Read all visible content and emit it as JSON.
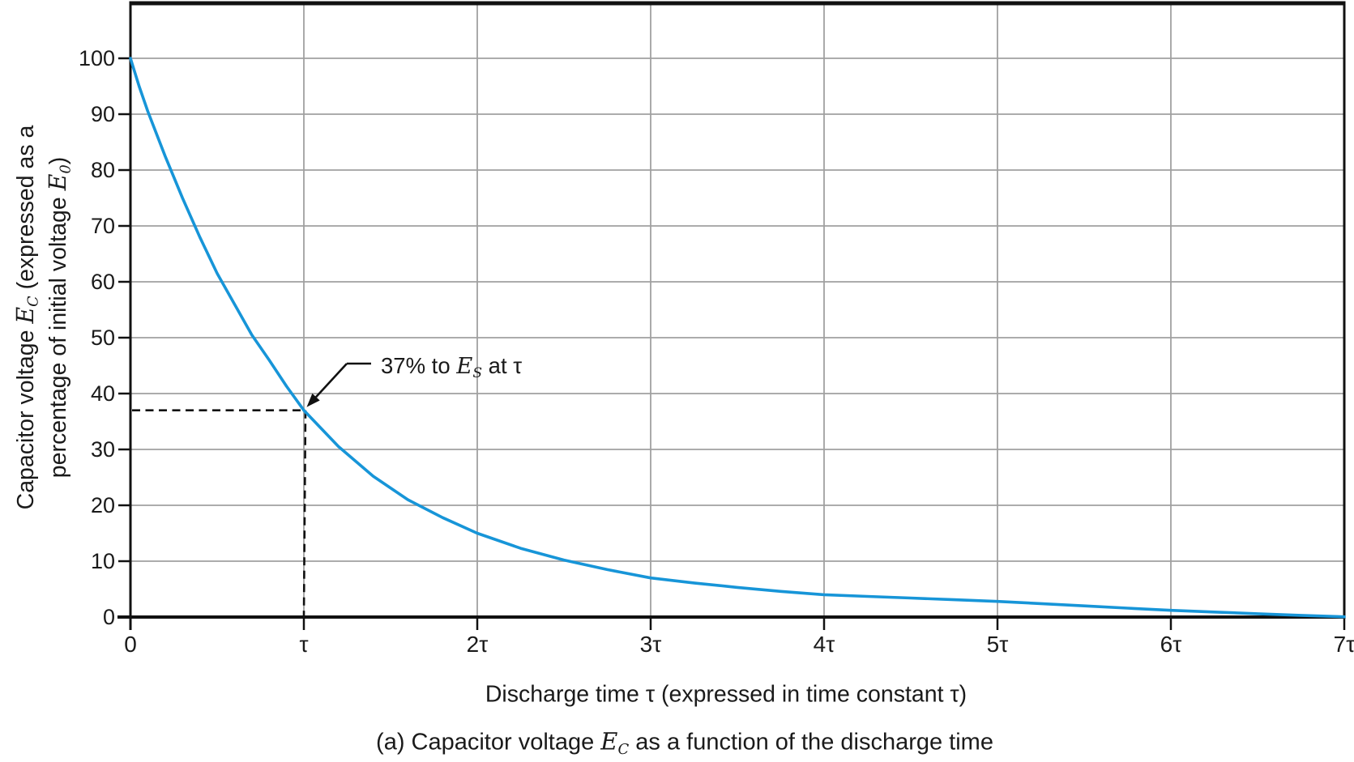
{
  "figure": {
    "caption_parts": [
      {
        "text": "(a) Capacitor voltage "
      },
      {
        "math": "E",
        "sub": "C"
      },
      {
        "text": " as a function of the discharge time"
      }
    ],
    "caption_plain": "(a) Capacitor voltage E_C as a function of the discharge time"
  },
  "chart_data": {
    "type": "line",
    "title": "",
    "xlabel": "Discharge time τ (expressed in time constant τ)",
    "ylabel_plain": "Capacitor voltage E_C (expressed as a percentage of initial voltage E_0)",
    "ylabel_parts": [
      {
        "text": "Capacitor voltage "
      },
      {
        "math": "E",
        "sub": "C"
      },
      {
        "text": " (expressed as a"
      },
      {
        "br": true
      },
      {
        "text": "percentage of initial voltage "
      },
      {
        "math": "E",
        "sub": "0"
      },
      {
        "text": ")"
      }
    ],
    "xlim": [
      0,
      7
    ],
    "ylim": [
      0,
      110
    ],
    "grid": true,
    "legend": "none",
    "axis_color": "#111111",
    "grid_color": "#a0a0a0",
    "curve_color": "#1795d8",
    "x_ticks": [
      {
        "value": 0,
        "label": "0"
      },
      {
        "value": 1,
        "label": "τ"
      },
      {
        "value": 2,
        "label": "2τ"
      },
      {
        "value": 3,
        "label": "3τ"
      },
      {
        "value": 4,
        "label": "4τ"
      },
      {
        "value": 5,
        "label": "5τ"
      },
      {
        "value": 6,
        "label": "6τ"
      },
      {
        "value": 7,
        "label": "7τ"
      }
    ],
    "y_ticks": [
      {
        "value": 0,
        "label": "0"
      },
      {
        "value": 10,
        "label": "10"
      },
      {
        "value": 20,
        "label": "20"
      },
      {
        "value": 30,
        "label": "30"
      },
      {
        "value": 40,
        "label": "40"
      },
      {
        "value": 50,
        "label": "50"
      },
      {
        "value": 60,
        "label": "60"
      },
      {
        "value": 70,
        "label": "70"
      },
      {
        "value": 80,
        "label": "80"
      },
      {
        "value": 90,
        "label": "90"
      },
      {
        "value": 100,
        "label": "100"
      }
    ],
    "series": [
      {
        "x": [
          0,
          0.05,
          0.1,
          0.2,
          0.3,
          0.4,
          0.5,
          0.6,
          0.7,
          0.8,
          0.9,
          1.0,
          1.2,
          1.4,
          1.6,
          1.8,
          2.0,
          2.25,
          2.5,
          2.75,
          3.0,
          3.25,
          3.5,
          3.75,
          4.0,
          4.25,
          4.5,
          4.75,
          5.0,
          5.25,
          5.5,
          5.75,
          6.0,
          6.25,
          6.5,
          6.75,
          7.0
        ],
        "y": [
          100,
          95,
          90.5,
          82.5,
          75,
          68,
          61.5,
          56,
          50.5,
          46,
          41.3,
          37,
          30.5,
          25.2,
          21,
          17.8,
          15,
          12.3,
          10.2,
          8.5,
          7,
          6.1,
          5.3,
          4.6,
          4.0,
          3.7,
          3.4,
          3.1,
          2.8,
          2.4,
          2.0,
          1.6,
          1.2,
          0.9,
          0.6,
          0.3,
          0.05
        ]
      }
    ],
    "annotation": {
      "plain": "37% to E_S at τ",
      "parts": [
        {
          "text": "37% to "
        },
        {
          "math": "E",
          "sub": "S"
        },
        {
          "text": " at τ"
        }
      ],
      "point_x": 1,
      "point_y": 37
    },
    "guide_lines": [
      {
        "x1": 0,
        "y1": 37,
        "x2": 1,
        "y2": 37
      },
      {
        "x1": 1,
        "y1": 37,
        "x2": 1,
        "y2": 0
      }
    ]
  }
}
